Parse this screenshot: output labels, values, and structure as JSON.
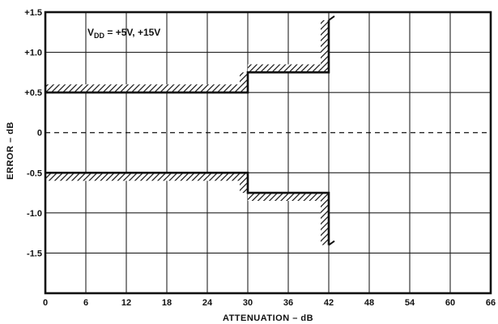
{
  "chart_data": {
    "type": "line",
    "title": "",
    "xlabel": "ATTENUATION – dB",
    "ylabel": "ERROR – dB",
    "xlim": [
      0,
      66
    ],
    "ylim": [
      -2.0,
      1.5
    ],
    "x_ticks": [
      0,
      6,
      12,
      18,
      24,
      30,
      36,
      42,
      48,
      54,
      60,
      66
    ],
    "x_tick_labels": [
      "0",
      "6",
      "12",
      "18",
      "24",
      "30",
      "36",
      "42",
      "48",
      "54",
      "60",
      "66"
    ],
    "y_ticks": [
      1.5,
      1.0,
      0.5,
      0,
      -0.5,
      -1.0,
      -1.5
    ],
    "y_tick_labels": [
      "+1.5",
      "+1.0",
      "+0.5",
      "0",
      "-0.5",
      "-1.0",
      "-1.5"
    ],
    "grid": true,
    "annotation": {
      "text_main": "V",
      "text_sub": "DD",
      "text_rest": " = +5V, +15V"
    },
    "series": [
      {
        "role": "upper-limit",
        "points": [
          [
            0,
            0.5
          ],
          [
            30,
            0.5
          ],
          [
            30,
            0.75
          ],
          [
            42,
            0.75
          ],
          [
            42,
            1.4
          ]
        ]
      },
      {
        "role": "lower-limit",
        "points": [
          [
            0,
            -0.5
          ],
          [
            30,
            -0.5
          ],
          [
            30,
            -0.75
          ],
          [
            42,
            -0.75
          ],
          [
            42,
            -1.4
          ]
        ]
      },
      {
        "role": "zero-reference",
        "style": "dashed",
        "points": [
          [
            0,
            0
          ],
          [
            66,
            0
          ]
        ]
      }
    ]
  }
}
